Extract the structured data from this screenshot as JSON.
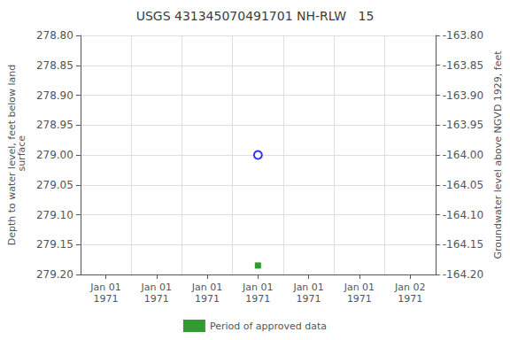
{
  "chart_data": {
    "type": "scatter",
    "title": "USGS 431345070491701 NH-RLW   15",
    "ylabel": "Depth to water level, feet below land\n surface",
    "y2label": "Groundwater level above NGVD 1929, feet",
    "categories": [
      "Jan 01\n1971",
      "Jan 01\n1971",
      "Jan 01\n1971",
      "Jan 01\n1971",
      "Jan 01\n1971",
      "Jan 01\n1971",
      "Jan 02\n1971"
    ],
    "series": [
      {
        "color": "#0000ff",
        "marker": "open_circle",
        "values": [
          null,
          null,
          null,
          279.0,
          null,
          null,
          null
        ]
      },
      {
        "name": "Period of approved data",
        "color": "#008000",
        "marker": "square",
        "values": [
          null,
          null,
          null,
          279.185,
          null,
          null,
          null
        ]
      }
    ],
    "ylim": [
      279.2,
      278.8
    ],
    "yticks": [
      {
        "value": 278.8,
        "label": "278.80"
      },
      {
        "value": 278.85,
        "label": "278.85"
      },
      {
        "value": 278.9,
        "label": "278.90"
      },
      {
        "value": 278.95,
        "label": "278.95"
      },
      {
        "value": 279.0,
        "label": "279.00"
      },
      {
        "value": 279.05,
        "label": "279.05"
      },
      {
        "value": 279.1,
        "label": "279.10"
      },
      {
        "value": 279.15,
        "label": "279.15"
      },
      {
        "value": 279.2,
        "label": "279.20"
      }
    ],
    "y2lim": [
      -164.2,
      -163.8
    ],
    "y2ticks": [
      {
        "value": -163.8,
        "label": "-163.80"
      },
      {
        "value": -163.85,
        "label": "-163.85"
      },
      {
        "value": -163.9,
        "label": "-163.90"
      },
      {
        "value": -163.95,
        "label": "-163.95"
      },
      {
        "value": -164.0,
        "label": "-164.00"
      },
      {
        "value": -164.05,
        "label": "-164.05"
      },
      {
        "value": -164.1,
        "label": "-164.10"
      },
      {
        "value": -164.15,
        "label": "-164.15"
      },
      {
        "value": -164.2,
        "label": "-164.20"
      }
    ],
    "grid": true,
    "legend": "bottom"
  }
}
